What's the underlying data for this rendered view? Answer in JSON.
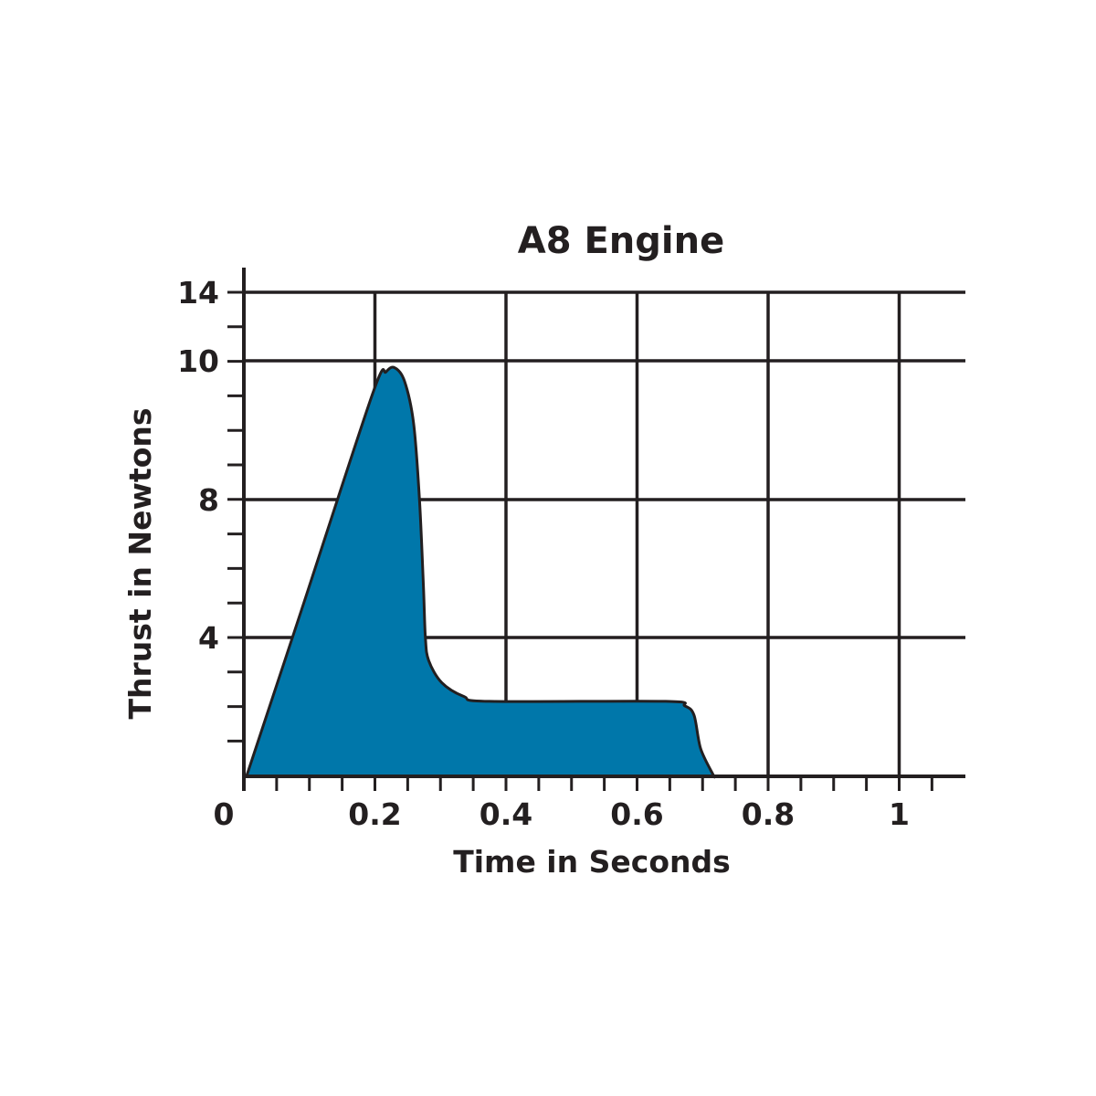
{
  "chart_data": {
    "type": "area",
    "title": "A8 Engine",
    "xlabel": "Time in Seconds",
    "ylabel": "Thrust in Newtons",
    "xlim": [
      0,
      1.1
    ],
    "x_ticks": [
      0,
      0.2,
      0.4,
      0.6,
      0.8,
      1
    ],
    "x_tick_labels": [
      "0",
      "0.2",
      "0.4",
      "0.6",
      "0.8",
      "1"
    ],
    "y_ticks": [
      4,
      8,
      10,
      14
    ],
    "y_tick_labels": [
      "4",
      "8",
      "10",
      "14"
    ],
    "grid": true,
    "fill_color": "#0077aa",
    "line_color": "#231f20",
    "series": [
      {
        "x": [
          0.004,
          0.088,
          0.197,
          0.217,
          0.23,
          0.245,
          0.259,
          0.268,
          0.274,
          0.277,
          0.282,
          0.302,
          0.336,
          0.375,
          0.644,
          0.673,
          0.687,
          0.697,
          0.716,
          0.718
        ],
        "y": [
          0,
          4.8,
          9.54,
          9.84,
          9.9,
          9.71,
          9.1,
          8,
          5.5,
          4,
          3.34,
          2.7,
          2.3,
          2.16,
          2.16,
          2.03,
          1.76,
          0.8,
          0.05,
          0
        ]
      }
    ]
  }
}
